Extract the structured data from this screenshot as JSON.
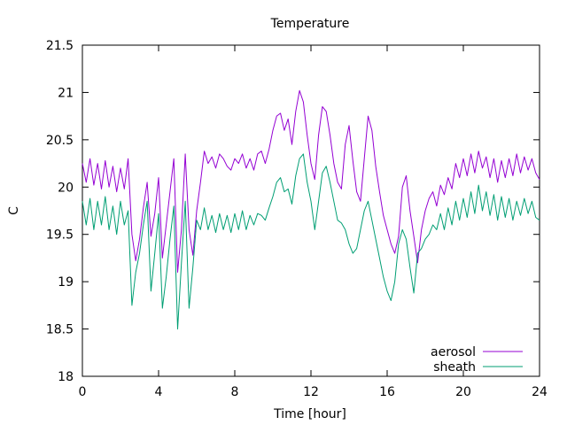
{
  "chart_data": {
    "type": "line",
    "title": "Temperature",
    "xlabel": "Time [hour]",
    "ylabel": "C",
    "xlim": [
      0,
      24
    ],
    "ylim": [
      18,
      21.5
    ],
    "xticks": [
      0,
      4,
      8,
      12,
      16,
      20,
      24
    ],
    "yticks": [
      18,
      18.5,
      19,
      19.5,
      20,
      20.5,
      21,
      21.5
    ],
    "xtick_labels": [
      "0",
      "4",
      "8",
      "12",
      "16",
      "20",
      "24"
    ],
    "ytick_labels": [
      "18",
      "18.5",
      "19",
      "19.5",
      "20",
      "20.5",
      "21",
      "21.5"
    ],
    "grid": false,
    "legend_position": "bottom-right",
    "series": [
      {
        "name": "aerosol",
        "color": "#9400d3",
        "x": [
          0,
          0.2,
          0.4,
          0.6,
          0.8,
          1.0,
          1.2,
          1.4,
          1.6,
          1.8,
          2.0,
          2.2,
          2.4,
          2.6,
          2.8,
          3.0,
          3.2,
          3.4,
          3.6,
          3.8,
          4.0,
          4.2,
          4.4,
          4.6,
          4.8,
          5.0,
          5.2,
          5.4,
          5.6,
          5.8,
          6.0,
          6.2,
          6.4,
          6.6,
          6.8,
          7.0,
          7.2,
          7.4,
          7.6,
          7.8,
          8.0,
          8.2,
          8.4,
          8.6,
          8.8,
          9.0,
          9.2,
          9.4,
          9.6,
          9.8,
          10.0,
          10.2,
          10.4,
          10.6,
          10.8,
          11.0,
          11.2,
          11.4,
          11.6,
          11.8,
          12.0,
          12.2,
          12.4,
          12.6,
          12.8,
          13.0,
          13.2,
          13.4,
          13.6,
          13.8,
          14.0,
          14.2,
          14.4,
          14.6,
          14.8,
          15.0,
          15.2,
          15.4,
          15.6,
          15.8,
          16.0,
          16.2,
          16.4,
          16.6,
          16.8,
          17.0,
          17.2,
          17.4,
          17.6,
          17.8,
          18.0,
          18.2,
          18.4,
          18.6,
          18.8,
          19.0,
          19.2,
          19.4,
          19.6,
          19.8,
          20.0,
          20.2,
          20.4,
          20.6,
          20.8,
          21.0,
          21.2,
          21.4,
          21.6,
          21.8,
          22.0,
          22.2,
          22.4,
          22.6,
          22.8,
          23.0,
          23.2,
          23.4,
          23.6,
          23.8,
          24.0
        ],
        "y": [
          20.25,
          20.05,
          20.3,
          20.02,
          20.25,
          19.98,
          20.28,
          20.0,
          20.22,
          19.95,
          20.2,
          19.98,
          20.3,
          19.5,
          19.22,
          19.45,
          19.78,
          20.05,
          19.48,
          19.72,
          20.1,
          19.25,
          19.6,
          19.95,
          20.3,
          19.1,
          19.55,
          20.35,
          19.55,
          19.28,
          19.75,
          20.05,
          20.38,
          20.25,
          20.32,
          20.2,
          20.35,
          20.3,
          20.22,
          20.18,
          20.3,
          20.25,
          20.35,
          20.2,
          20.3,
          20.18,
          20.35,
          20.38,
          20.25,
          20.4,
          20.6,
          20.75,
          20.78,
          20.6,
          20.72,
          20.45,
          20.8,
          21.02,
          20.9,
          20.55,
          20.25,
          20.08,
          20.55,
          20.85,
          20.8,
          20.55,
          20.25,
          20.05,
          19.98,
          20.45,
          20.65,
          20.28,
          19.95,
          19.85,
          20.3,
          20.75,
          20.6,
          20.22,
          19.95,
          19.7,
          19.55,
          19.4,
          19.3,
          19.48,
          20.0,
          20.12,
          19.75,
          19.48,
          19.2,
          19.55,
          19.75,
          19.88,
          19.95,
          19.8,
          20.02,
          19.92,
          20.1,
          19.98,
          20.25,
          20.1,
          20.3,
          20.12,
          20.35,
          20.15,
          20.38,
          20.2,
          20.32,
          20.1,
          20.3,
          20.05,
          20.28,
          20.1,
          20.3,
          20.12,
          20.35,
          20.15,
          20.32,
          20.18,
          20.3,
          20.15,
          20.08
        ]
      },
      {
        "name": "sheath",
        "color": "#009e73",
        "x": [
          0,
          0.2,
          0.4,
          0.6,
          0.8,
          1.0,
          1.2,
          1.4,
          1.6,
          1.8,
          2.0,
          2.2,
          2.4,
          2.6,
          2.8,
          3.0,
          3.2,
          3.4,
          3.6,
          3.8,
          4.0,
          4.2,
          4.4,
          4.6,
          4.8,
          5.0,
          5.2,
          5.4,
          5.6,
          5.8,
          6.0,
          6.2,
          6.4,
          6.6,
          6.8,
          7.0,
          7.2,
          7.4,
          7.6,
          7.8,
          8.0,
          8.2,
          8.4,
          8.6,
          8.8,
          9.0,
          9.2,
          9.4,
          9.6,
          9.8,
          10.0,
          10.2,
          10.4,
          10.6,
          10.8,
          11.0,
          11.2,
          11.4,
          11.6,
          11.8,
          12.0,
          12.2,
          12.4,
          12.6,
          12.8,
          13.0,
          13.2,
          13.4,
          13.6,
          13.8,
          14.0,
          14.2,
          14.4,
          14.6,
          14.8,
          15.0,
          15.2,
          15.4,
          15.6,
          15.8,
          16.0,
          16.2,
          16.4,
          16.6,
          16.8,
          17.0,
          17.2,
          17.4,
          17.6,
          17.8,
          18.0,
          18.2,
          18.4,
          18.6,
          18.8,
          19.0,
          19.2,
          19.4,
          19.6,
          19.8,
          20.0,
          20.2,
          20.4,
          20.6,
          20.8,
          21.0,
          21.2,
          21.4,
          21.6,
          21.8,
          22.0,
          22.2,
          22.4,
          22.6,
          22.8,
          23.0,
          23.2,
          23.4,
          23.6,
          23.8,
          24.0
        ],
        "y": [
          19.85,
          19.6,
          19.88,
          19.55,
          19.85,
          19.6,
          19.9,
          19.55,
          19.8,
          19.5,
          19.85,
          19.6,
          19.75,
          18.75,
          19.1,
          19.3,
          19.6,
          19.85,
          18.9,
          19.3,
          19.72,
          18.72,
          19.05,
          19.45,
          19.8,
          18.5,
          19.2,
          19.85,
          18.72,
          19.15,
          19.65,
          19.55,
          19.78,
          19.55,
          19.7,
          19.52,
          19.72,
          19.55,
          19.7,
          19.52,
          19.72,
          19.55,
          19.75,
          19.55,
          19.7,
          19.6,
          19.72,
          19.7,
          19.65,
          19.78,
          19.9,
          20.05,
          20.1,
          19.95,
          19.98,
          19.82,
          20.12,
          20.3,
          20.35,
          20.05,
          19.85,
          19.55,
          19.85,
          20.15,
          20.22,
          20.05,
          19.85,
          19.65,
          19.62,
          19.55,
          19.4,
          19.3,
          19.35,
          19.55,
          19.75,
          19.85,
          19.65,
          19.45,
          19.25,
          19.05,
          18.9,
          18.8,
          19.0,
          19.4,
          19.55,
          19.45,
          19.15,
          18.88,
          19.3,
          19.35,
          19.45,
          19.5,
          19.6,
          19.55,
          19.72,
          19.55,
          19.78,
          19.6,
          19.85,
          19.65,
          19.88,
          19.68,
          19.95,
          19.72,
          20.02,
          19.75,
          19.95,
          19.7,
          19.92,
          19.65,
          19.9,
          19.68,
          19.88,
          19.65,
          19.85,
          19.7,
          19.88,
          19.72,
          19.85,
          19.68,
          19.65
        ]
      }
    ]
  }
}
